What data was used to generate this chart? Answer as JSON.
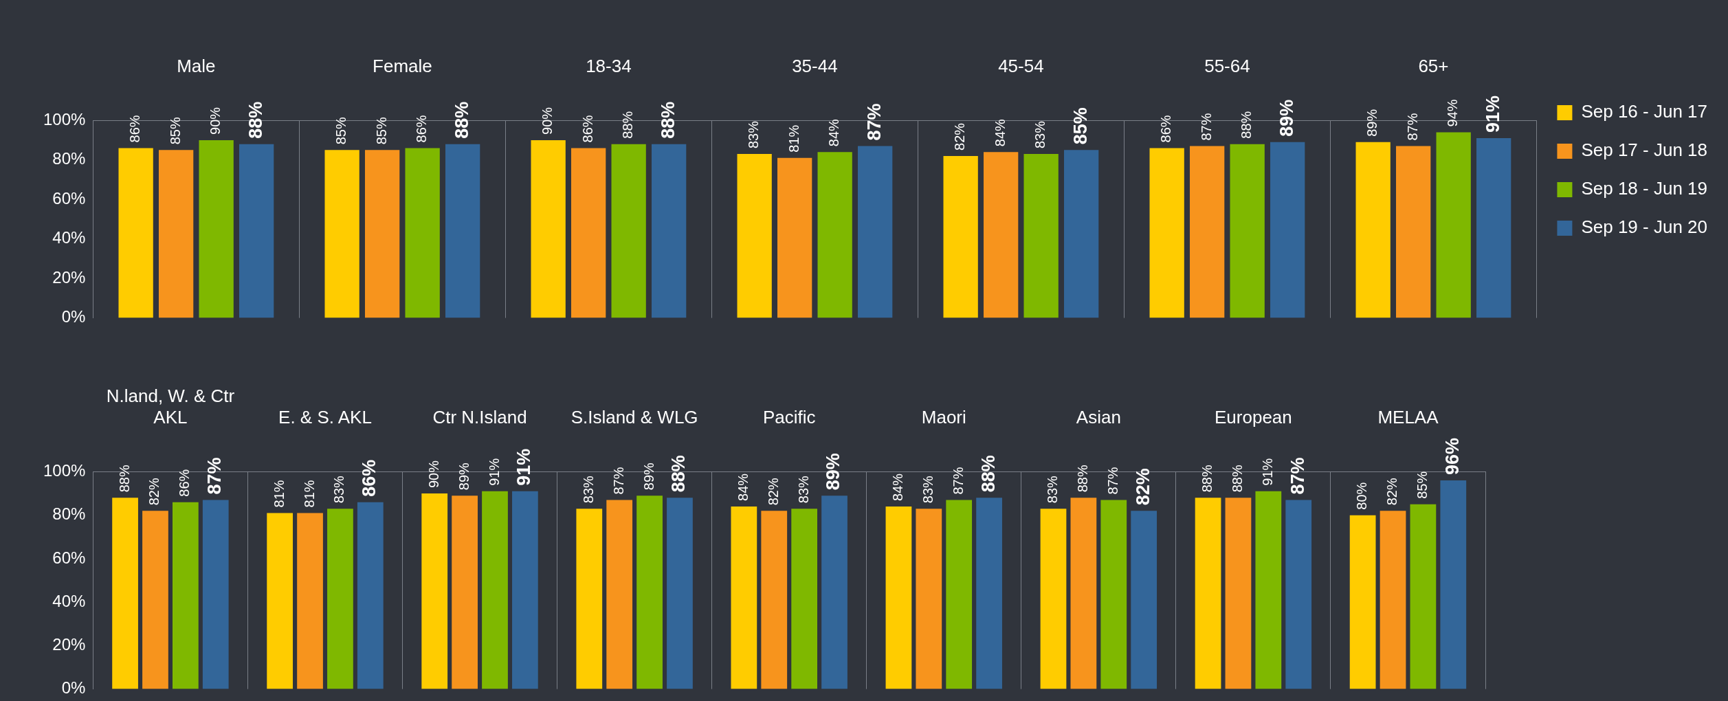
{
  "chart_data": [
    {
      "type": "bar",
      "categories": [
        "Male",
        "Female",
        "18-34",
        "35-44",
        "45-54",
        "55-64",
        "65+"
      ],
      "series": [
        {
          "name": "Sep 16 - Jun 17",
          "color": "#ffcc00",
          "values": [
            86,
            85,
            90,
            83,
            82,
            86,
            89
          ],
          "value_labels": [
            "86%",
            "85%",
            "90%",
            "83%",
            "82%",
            "86%",
            "89%"
          ]
        },
        {
          "name": "Sep 17 - Jun 18",
          "color": "#f7941d",
          "values": [
            85,
            85,
            86,
            81,
            84,
            87,
            87
          ],
          "value_labels": [
            "85%",
            "85%",
            "86%",
            "81%",
            "84%",
            "87%",
            "87%"
          ]
        },
        {
          "name": "Sep 18 - Jun 19",
          "color": "#7fb800",
          "values": [
            90,
            86,
            88,
            84,
            83,
            88,
            94
          ],
          "value_labels": [
            "90%",
            "86%",
            "88%",
            "84%",
            "83%",
            "88%",
            "94%"
          ]
        },
        {
          "name": "Sep 19 - Jun 20",
          "color": "#336699",
          "values": [
            88,
            88,
            88,
            87,
            85,
            89,
            91
          ],
          "value_labels": [
            "88%",
            "88%",
            "88%",
            "87%",
            "85%",
            "89%",
            "91%"
          ]
        }
      ],
      "ylim": [
        0,
        100
      ],
      "yticks": [
        {
          "value": 0,
          "label": "0%"
        },
        {
          "value": 20,
          "label": "20%"
        },
        {
          "value": 40,
          "label": "40%"
        },
        {
          "value": 60,
          "label": "60%"
        },
        {
          "value": 80,
          "label": "80%"
        },
        {
          "value": 100,
          "label": "100%"
        }
      ],
      "grid": "x",
      "legend": "right"
    },
    {
      "type": "bar",
      "categories": [
        "N.land, W. & Ctr AKL",
        "E. & S. AKL",
        "Ctr N.Island",
        "S.Island & WLG",
        "Pacific",
        "Maori",
        "Asian",
        "European",
        "MELAA"
      ],
      "series": [
        {
          "color": "#ffcc00",
          "values": [
            88,
            81,
            90,
            83,
            84,
            84,
            83,
            88,
            80
          ],
          "value_labels": [
            "88%",
            "81%",
            "90%",
            "83%",
            "84%",
            "84%",
            "83%",
            "88%",
            "80%"
          ]
        },
        {
          "color": "#f7941d",
          "values": [
            82,
            81,
            89,
            87,
            82,
            83,
            88,
            88,
            82
          ],
          "value_labels": [
            "82%",
            "81%",
            "89%",
            "87%",
            "82%",
            "83%",
            "88%",
            "88%",
            "82%"
          ]
        },
        {
          "color": "#7fb800",
          "values": [
            86,
            83,
            91,
            89,
            83,
            87,
            87,
            91,
            85
          ],
          "value_labels": [
            "86%",
            "83%",
            "91%",
            "89%",
            "83%",
            "87%",
            "87%",
            "91%",
            "85%"
          ]
        },
        {
          "color": "#336699",
          "values": [
            87,
            86,
            91,
            88,
            89,
            88,
            82,
            87,
            96
          ],
          "value_labels": [
            "87%",
            "86%",
            "91%",
            "88%",
            "89%",
            "88%",
            "82%",
            "87%",
            "96%"
          ]
        }
      ],
      "ylim": [
        0,
        100
      ],
      "yticks": [
        {
          "value": 0,
          "label": "0%"
        },
        {
          "value": 20,
          "label": "20%"
        },
        {
          "value": 40,
          "label": "40%"
        },
        {
          "value": 60,
          "label": "60%"
        },
        {
          "value": 80,
          "label": "80%"
        },
        {
          "value": 100,
          "label": "100%"
        }
      ],
      "grid": "x"
    }
  ]
}
